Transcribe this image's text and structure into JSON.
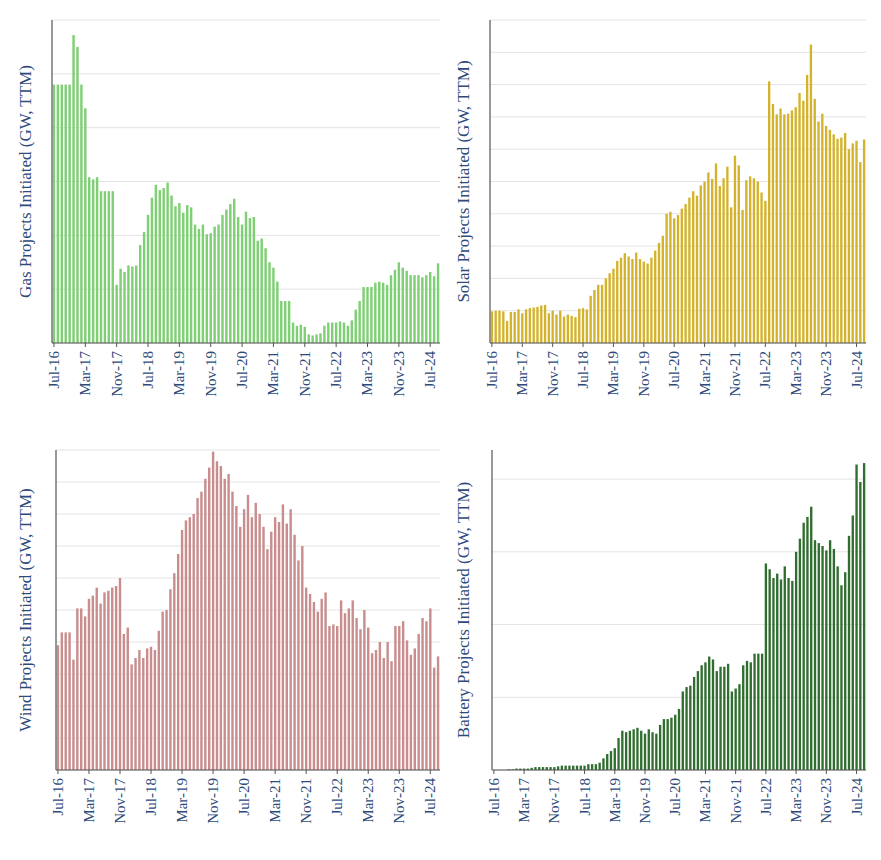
{
  "chart_data": [
    {
      "type": "bar",
      "y_label": "Gas Projects Initiated (GW, TTM)",
      "color": "#7fcf75",
      "grid": true,
      "tick_labels": "x",
      "ylim": [
        0,
        30
      ],
      "yticks": [
        0,
        5,
        10,
        15,
        20,
        25,
        30
      ],
      "categories": [
        "Jul-16",
        null,
        null,
        null,
        null,
        null,
        null,
        null,
        "Mar-17",
        null,
        null,
        null,
        null,
        null,
        null,
        null,
        "Nov-17",
        null,
        null,
        null,
        null,
        null,
        null,
        null,
        "Jul-18",
        null,
        null,
        null,
        null,
        null,
        null,
        null,
        "Mar-19",
        null,
        null,
        null,
        null,
        null,
        null,
        null,
        "Nov-19",
        null,
        null,
        null,
        null,
        null,
        null,
        null,
        "Jul-20",
        null,
        null,
        null,
        null,
        null,
        null,
        null,
        "Mar-21",
        null,
        null,
        null,
        null,
        null,
        null,
        null,
        "Nov-21",
        null,
        null,
        null,
        null,
        null,
        null,
        null,
        "Jul-22",
        null,
        null,
        null,
        null,
        null,
        null,
        null,
        "Mar-23",
        null,
        null,
        null,
        null,
        null,
        null,
        null,
        "Nov-23",
        null,
        null,
        null,
        null,
        null,
        null,
        null,
        "Jul-24",
        null,
        null
      ],
      "values": [
        24,
        24,
        24,
        24,
        24,
        28.6,
        27.5,
        24,
        21.8,
        15.4,
        15.2,
        15.4,
        14.1,
        14.1,
        14.1,
        14.1,
        5.4,
        6.9,
        6.6,
        7.2,
        7.1,
        7.2,
        9.1,
        10.3,
        11.9,
        13.5,
        14.7,
        14.2,
        14.4,
        14.9,
        13.7,
        12.7,
        13.0,
        12.1,
        12.8,
        12.6,
        11.0,
        10.6,
        11.0,
        10.1,
        10.2,
        10.8,
        11.0,
        11.9,
        12.4,
        12.9,
        13.4,
        11.7,
        11.0,
        12.2,
        11.6,
        11.7,
        9.5,
        9.7,
        8.8,
        7.5,
        7.0,
        5.7,
        3.9,
        3.9,
        3.9,
        1.9,
        1.6,
        1.7,
        1.5,
        0.8,
        0.7,
        0.8,
        0.9,
        1.6,
        1.9,
        1.9,
        1.9,
        2.0,
        1.9,
        1.6,
        2.1,
        3.1,
        3.9,
        5.2,
        5.2,
        5.2,
        5.6,
        5.7,
        5.6,
        5.4,
        6.3,
        6.8,
        7.5,
        7.0,
        6.7,
        6.3,
        6.3,
        6.3,
        6.1,
        6.3,
        6.6,
        6.2,
        7.4
      ]
    },
    {
      "type": "bar",
      "y_label": "Solar Projects Initiated (GW, TTM)",
      "color": "#d4b32c",
      "grid": true,
      "tick_labels": "x",
      "ylim": [
        0,
        50
      ],
      "yticks": [
        0,
        5,
        10,
        15,
        20,
        25,
        30,
        35,
        40,
        45,
        50
      ],
      "categories": [
        "Jul-16",
        null,
        null,
        null,
        null,
        null,
        null,
        null,
        "Mar-17",
        null,
        null,
        null,
        null,
        null,
        null,
        null,
        "Nov-17",
        null,
        null,
        null,
        null,
        null,
        null,
        null,
        "Jul-18",
        null,
        null,
        null,
        null,
        null,
        null,
        null,
        "Mar-19",
        null,
        null,
        null,
        null,
        null,
        null,
        null,
        "Nov-19",
        null,
        null,
        null,
        null,
        null,
        null,
        null,
        "Jul-20",
        null,
        null,
        null,
        null,
        null,
        null,
        null,
        "Mar-21",
        null,
        null,
        null,
        null,
        null,
        null,
        null,
        "Nov-21",
        null,
        null,
        null,
        null,
        null,
        null,
        null,
        "Jul-22",
        null,
        null,
        null,
        null,
        null,
        null,
        null,
        "Mar-23",
        null,
        null,
        null,
        null,
        null,
        null,
        null,
        "Nov-23",
        null,
        null,
        null,
        null,
        null,
        null,
        null,
        "Jul-24",
        null,
        null
      ],
      "values": [
        4.9,
        5.0,
        5.0,
        4.9,
        3.4,
        4.8,
        4.8,
        5.2,
        4.6,
        5.2,
        5.4,
        5.5,
        5.6,
        5.8,
        5.9,
        4.6,
        5.0,
        4.4,
        5.0,
        4.1,
        4.4,
        4.2,
        4.0,
        5.3,
        5.4,
        5.2,
        7.3,
        8.2,
        9.0,
        9.0,
        10.0,
        10.8,
        11.5,
        12.7,
        13.2,
        13.9,
        13.4,
        13.0,
        14.0,
        13.0,
        12.6,
        12.3,
        13.2,
        14.3,
        15.5,
        16.6,
        20.0,
        20.3,
        19.3,
        19.8,
        20.8,
        21.5,
        22.5,
        23.5,
        22.8,
        24.4,
        25.0,
        26.4,
        25.4,
        27.8,
        24.3,
        25.5,
        27.3,
        21.0,
        29.0,
        27.5,
        20.6,
        25.2,
        25.8,
        25.5,
        25.0,
        23.3,
        22.0,
        40.5,
        37.0,
        35.4,
        36.3,
        35.4,
        35.5,
        36.0,
        36.5,
        38.7,
        37.5,
        41.5,
        46.2,
        37.8,
        34.3,
        35.5,
        33.6,
        33.0,
        32.3,
        31.6,
        31.8,
        32.5,
        30.0,
        30.9,
        31.3,
        28.0,
        31.5
      ]
    },
    {
      "type": "bar",
      "y_label": "Wind Projects Initiated (GW, TTM)",
      "color": "#c98d8d",
      "grid": true,
      "tick_labels": "x",
      "ylim": [
        0,
        20
      ],
      "yticks": [
        0,
        2,
        4,
        6,
        8,
        10,
        12,
        14,
        16,
        18,
        20
      ],
      "categories": [
        "Jul-16",
        null,
        null,
        null,
        null,
        null,
        null,
        null,
        "Mar-17",
        null,
        null,
        null,
        null,
        null,
        null,
        null,
        "Nov-17",
        null,
        null,
        null,
        null,
        null,
        null,
        null,
        "Jul-18",
        null,
        null,
        null,
        null,
        null,
        null,
        null,
        "Mar-19",
        null,
        null,
        null,
        null,
        null,
        null,
        null,
        "Nov-19",
        null,
        null,
        null,
        null,
        null,
        null,
        null,
        "Jul-20",
        null,
        null,
        null,
        null,
        null,
        null,
        null,
        "Mar-21",
        null,
        null,
        null,
        null,
        null,
        null,
        null,
        "Nov-21",
        null,
        null,
        null,
        null,
        null,
        null,
        null,
        "Jul-22",
        null,
        null,
        null,
        null,
        null,
        null,
        null,
        "Mar-23",
        null,
        null,
        null,
        null,
        null,
        null,
        null,
        "Nov-23",
        null,
        null,
        null,
        null,
        null,
        null,
        null,
        "Jul-24",
        null,
        null
      ],
      "values": [
        7.8,
        8.6,
        8.6,
        8.6,
        6.9,
        10.1,
        10.1,
        9.6,
        10.7,
        10.9,
        11.4,
        10.4,
        11.1,
        11.2,
        11.4,
        11.5,
        12.0,
        8.5,
        8.9,
        6.6,
        7.0,
        7.5,
        7.0,
        7.6,
        7.7,
        7.5,
        8.7,
        9.9,
        10.0,
        11.3,
        12.3,
        13.5,
        15.0,
        15.6,
        15.8,
        16.0,
        17.0,
        17.4,
        18.2,
        18.9,
        19.9,
        19.3,
        19.0,
        18.2,
        18.5,
        17.4,
        16.5,
        15.2,
        16.3,
        17.2,
        15.8,
        16.7,
        16.0,
        15.2,
        13.8,
        14.9,
        15.8,
        15.5,
        16.6,
        15.4,
        16.3,
        14.7,
        13.1,
        14.0,
        11.4,
        11.0,
        10.5,
        9.9,
        10.7,
        11.1,
        9.0,
        9.1,
        9.0,
        10.6,
        9.8,
        10.1,
        10.6,
        9.5,
        8.8,
        10.0,
        8.9,
        7.3,
        7.5,
        8.0,
        7.0,
        8.0,
        6.8,
        9.0,
        9.0,
        9.3,
        8.1,
        7.2,
        7.6,
        8.5,
        9.5,
        9.3,
        10.1,
        6.4,
        7.1
      ]
    },
    {
      "type": "bar",
      "y_label": "Battery Projects Initiated (GW, TTM)",
      "color": "#2f6e2f",
      "grid": true,
      "tick_labels": "x",
      "ylim": [
        0,
        22
      ],
      "yticks": [
        0,
        5,
        10,
        15,
        20
      ],
      "categories": [
        "Jul-16",
        null,
        null,
        null,
        null,
        null,
        null,
        null,
        "Mar-17",
        null,
        null,
        null,
        null,
        null,
        null,
        null,
        "Nov-17",
        null,
        null,
        null,
        null,
        null,
        null,
        null,
        "Jul-18",
        null,
        null,
        null,
        null,
        null,
        null,
        null,
        "Mar-19",
        null,
        null,
        null,
        null,
        null,
        null,
        null,
        "Nov-19",
        null,
        null,
        null,
        null,
        null,
        null,
        null,
        "Jul-20",
        null,
        null,
        null,
        null,
        null,
        null,
        null,
        "Mar-21",
        null,
        null,
        null,
        null,
        null,
        null,
        null,
        "Nov-21",
        null,
        null,
        null,
        null,
        null,
        null,
        null,
        "Jul-22",
        null,
        null,
        null,
        null,
        null,
        null,
        null,
        "Mar-23",
        null,
        null,
        null,
        null,
        null,
        null,
        null,
        "Nov-23",
        null,
        null,
        null,
        null,
        null,
        null,
        null,
        "Jul-24",
        null,
        null
      ],
      "values": [
        0,
        0,
        0,
        0,
        0.05,
        0.05,
        0.1,
        0.1,
        0.1,
        0.1,
        0.15,
        0.2,
        0.2,
        0.2,
        0.2,
        0.2,
        0.2,
        0.25,
        0.3,
        0.3,
        0.3,
        0.3,
        0.3,
        0.3,
        0.3,
        0.4,
        0.4,
        0.4,
        0.5,
        0.8,
        1.1,
        1.3,
        1.5,
        2.2,
        2.7,
        2.6,
        2.7,
        2.8,
        2.9,
        2.7,
        2.5,
        2.8,
        2.6,
        2.5,
        3.1,
        3.5,
        3.5,
        3.6,
        3.8,
        4.2,
        5.4,
        5.7,
        5.8,
        6.4,
        6.8,
        7.2,
        7.4,
        7.8,
        7.6,
        6.8,
        7.1,
        7.1,
        7.3,
        5.4,
        5.6,
        5.9,
        7.2,
        7.5,
        7.4,
        8.0,
        8.0,
        8.0,
        14.2,
        13.8,
        13.2,
        13.5,
        13.1,
        14.0,
        13.2,
        13.0,
        15.0,
        15.9,
        17.0,
        17.4,
        18.1,
        15.8,
        15.6,
        15.4,
        15.1,
        15.8,
        15.2,
        14.0,
        12.7,
        13.6,
        16.1,
        17.5,
        21.0,
        19.8,
        21.1
      ]
    }
  ]
}
